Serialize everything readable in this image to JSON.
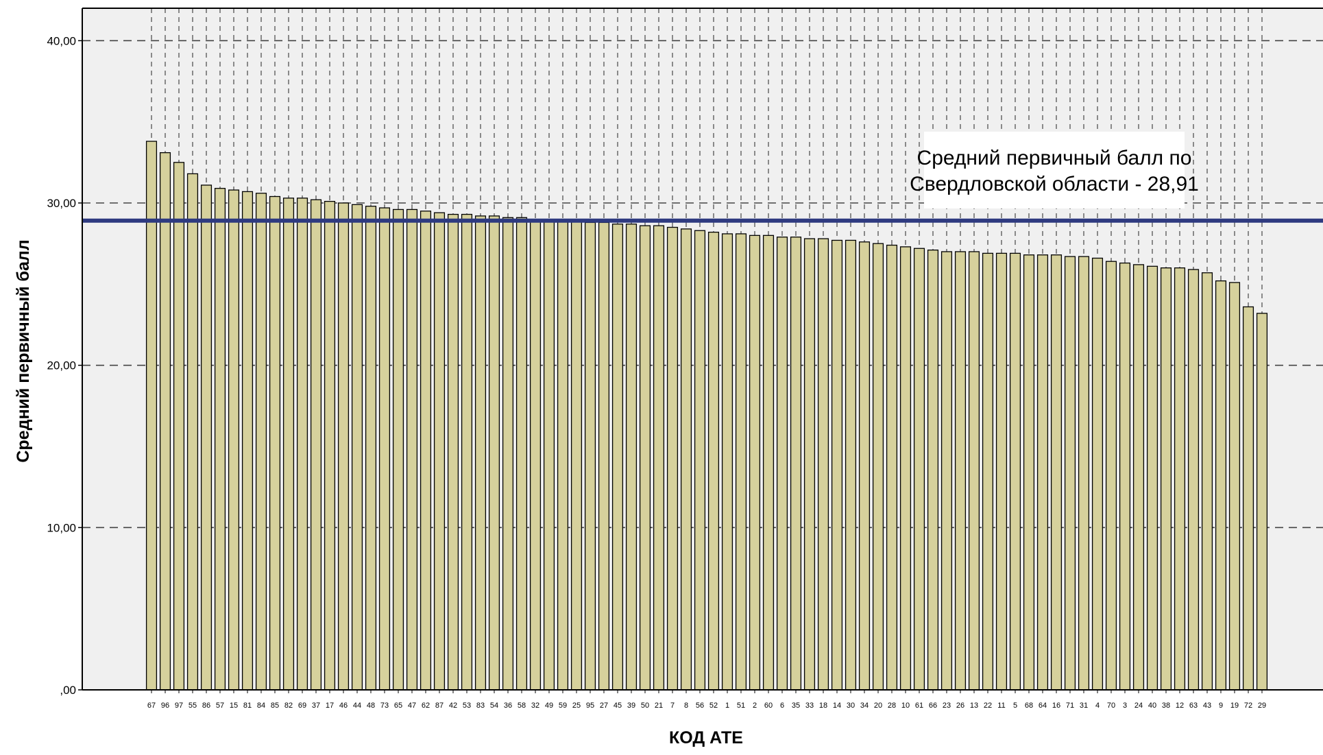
{
  "chart_data": {
    "type": "bar",
    "title": "",
    "xlabel": "КОД АТЕ",
    "ylabel": "Средний первичный балл",
    "ylim": [
      0,
      42
    ],
    "yticks": [
      0,
      10,
      20,
      30,
      40
    ],
    "ytick_labels": [
      ",00",
      "10,00",
      "20,00",
      "30,00",
      "40,00"
    ],
    "grid": true,
    "legend": "none",
    "categories": [
      "67",
      "96",
      "97",
      "55",
      "86",
      "57",
      "15",
      "81",
      "84",
      "85",
      "82",
      "69",
      "37",
      "17",
      "46",
      "44",
      "48",
      "73",
      "65",
      "47",
      "62",
      "87",
      "42",
      "53",
      "83",
      "54",
      "36",
      "58",
      "32",
      "49",
      "59",
      "25",
      "95",
      "27",
      "45",
      "39",
      "50",
      "21",
      "7",
      "8",
      "56",
      "52",
      "1",
      "51",
      "2",
      "60",
      "6",
      "35",
      "33",
      "18",
      "14",
      "30",
      "34",
      "20",
      "28",
      "10",
      "61",
      "66",
      "23",
      "26",
      "13",
      "22",
      "11",
      "5",
      "68",
      "64",
      "16",
      "71",
      "31",
      "4",
      "70",
      "3",
      "24",
      "40",
      "38",
      "12",
      "63",
      "43",
      "9",
      "19",
      "72",
      "29"
    ],
    "values": [
      33.8,
      33.1,
      32.5,
      31.8,
      31.1,
      30.9,
      30.8,
      30.7,
      30.6,
      30.4,
      30.3,
      30.3,
      30.2,
      30.1,
      30.0,
      29.9,
      29.8,
      29.7,
      29.6,
      29.6,
      29.5,
      29.4,
      29.3,
      29.3,
      29.2,
      29.2,
      29.1,
      29.1,
      29.0,
      29.0,
      28.9,
      28.9,
      28.8,
      28.8,
      28.7,
      28.7,
      28.6,
      28.6,
      28.5,
      28.4,
      28.3,
      28.2,
      28.1,
      28.1,
      28.0,
      28.0,
      27.9,
      27.9,
      27.8,
      27.8,
      27.7,
      27.7,
      27.6,
      27.5,
      27.4,
      27.3,
      27.2,
      27.1,
      27.0,
      27.0,
      27.0,
      26.9,
      26.9,
      26.9,
      26.8,
      26.8,
      26.8,
      26.7,
      26.7,
      26.6,
      26.4,
      26.3,
      26.2,
      26.1,
      26.0,
      26.0,
      25.9,
      25.7,
      25.2,
      25.1,
      23.6,
      23.2
    ],
    "bar_color": "#d6d19c",
    "bar_stroke": "#000000",
    "reference_line": {
      "value": 28.91,
      "color": "#2e3a80",
      "label_line1": "Средний первичный балл по",
      "label_line2": "Свердловской области - 28,91"
    },
    "plot_background": "#f0f0f0"
  }
}
